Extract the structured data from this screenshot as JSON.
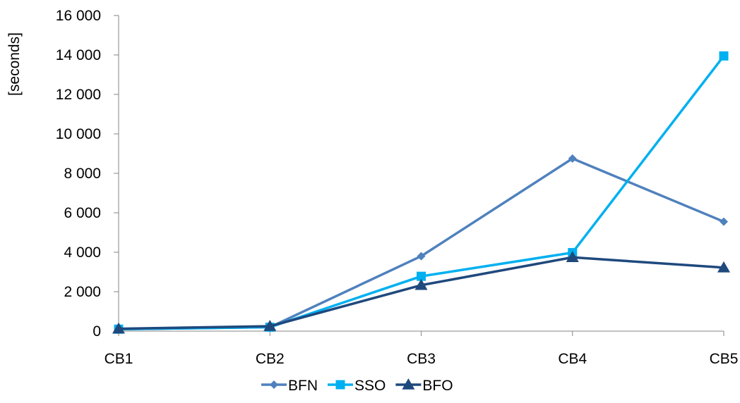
{
  "chart_data": {
    "type": "line",
    "title": "",
    "xlabel": "",
    "ylabel": "[seconds]",
    "categories": [
      "CB1",
      "CB2",
      "CB3",
      "CB4",
      "CB5"
    ],
    "ylim": [
      0,
      16000
    ],
    "yticks": [
      0,
      2000,
      4000,
      6000,
      8000,
      10000,
      12000,
      14000,
      16000
    ],
    "ytick_labels": [
      "0",
      "2 000",
      "4 000",
      "6 000",
      "8 000",
      "10 000",
      "12 000",
      "14 000",
      "16 000"
    ],
    "grid": false,
    "legend_position": "bottom",
    "series": [
      {
        "name": "BFN",
        "marker": "diamond",
        "color": "#4F81BD",
        "values": [
          100,
          200,
          3800,
          8750,
          5550
        ]
      },
      {
        "name": "SSO",
        "marker": "square",
        "color": "#00B0F0",
        "values": [
          100,
          200,
          2780,
          3980,
          13950
        ]
      },
      {
        "name": "BFO",
        "marker": "triangle",
        "color": "#1F497D",
        "values": [
          120,
          250,
          2330,
          3740,
          3220
        ]
      }
    ]
  }
}
